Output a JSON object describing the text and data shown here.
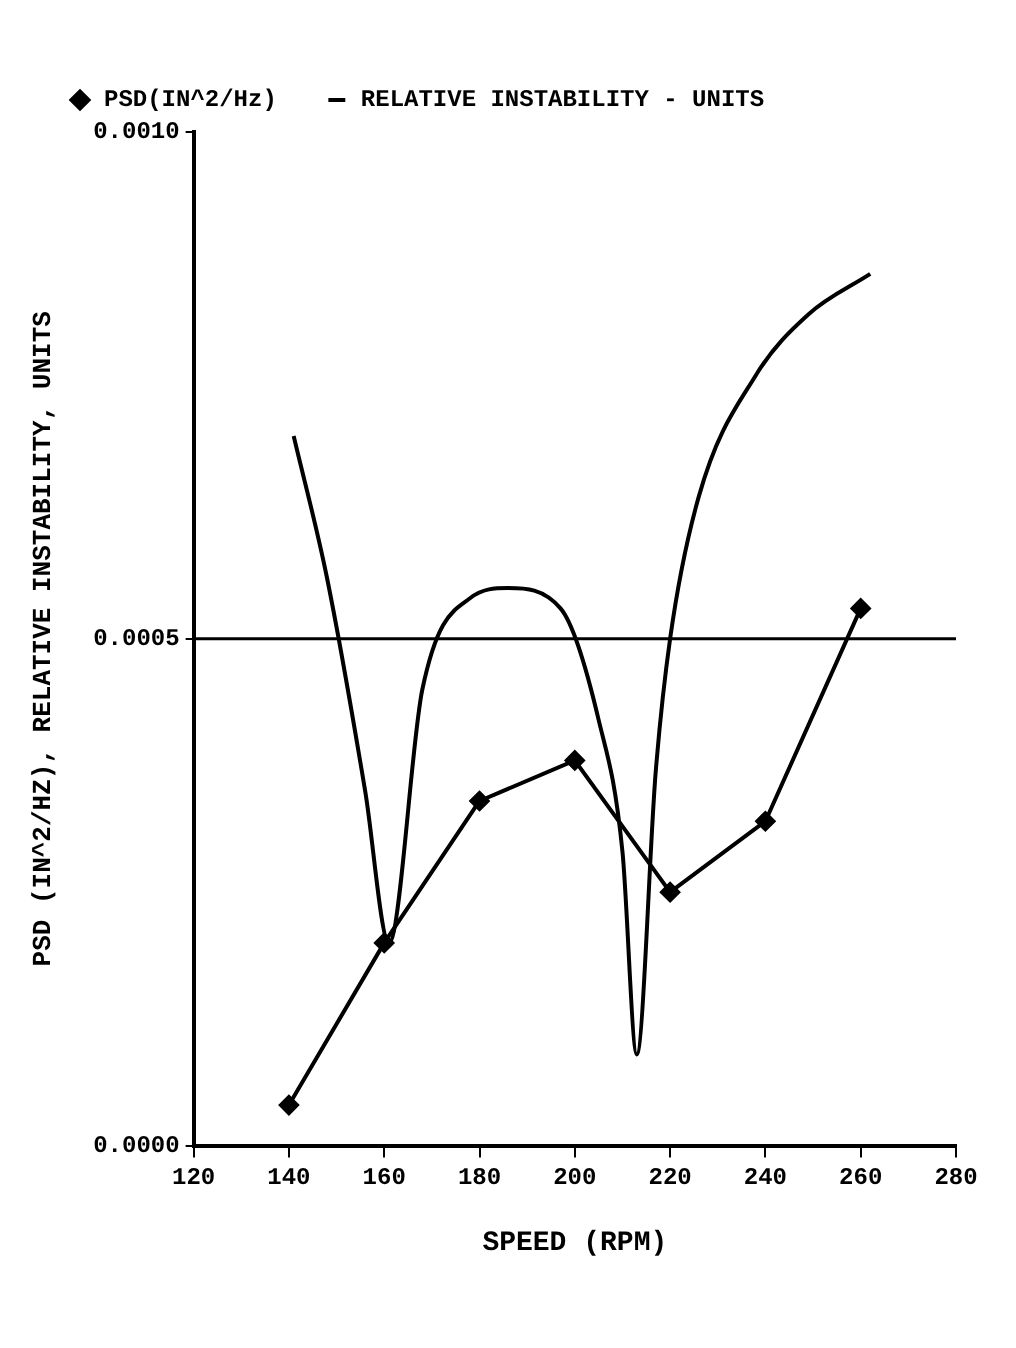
{
  "chart_data": {
    "type": "line",
    "xlabel": "SPEED (RPM)",
    "ylabel": "PSD (IN^2/HZ), RELATIVE INSTABILITY, UNITS",
    "xlim": [
      120,
      280
    ],
    "xticks": [
      120,
      140,
      160,
      180,
      200,
      220,
      240,
      260,
      280
    ],
    "ylim": [
      0,
      0.001
    ],
    "yticks": [
      {
        "value": 0,
        "label": "0.0000"
      },
      {
        "value": 0.0005,
        "label": "0.0005"
      },
      {
        "value": 0.001,
        "label": "0.0010"
      }
    ],
    "grid": false,
    "legend": "top",
    "line_style": "solid",
    "series": [
      {
        "name": "PSD(IN^2/Hz)",
        "color": "#000000",
        "marker": "diamond",
        "x": [
          140,
          160,
          180,
          200,
          220,
          240,
          260
        ],
        "values": [
          4e-05,
          0.0002,
          0.00034,
          0.00038,
          0.00025,
          0.00032,
          0.00053
        ]
      },
      {
        "name": "RELATIVE INSTABILITY - UNITS",
        "color": "#000000",
        "marker": "none",
        "x": [
          141,
          148,
          156,
          161,
          168,
          178,
          186,
          197,
          205,
          210,
          213,
          217,
          220,
          226,
          238,
          249,
          262
        ],
        "values": [
          0.0007,
          0.00056,
          0.00035,
          0.0002,
          0.00045,
          0.00054,
          0.00055,
          0.00053,
          0.00042,
          0.00029,
          9e-05,
          0.00037,
          0.0005,
          0.00064,
          0.00076,
          0.00082,
          0.00086
        ]
      }
    ],
    "ref_lines": [
      {
        "axis": "y",
        "value": 0.0005,
        "color": "#000000"
      }
    ]
  }
}
